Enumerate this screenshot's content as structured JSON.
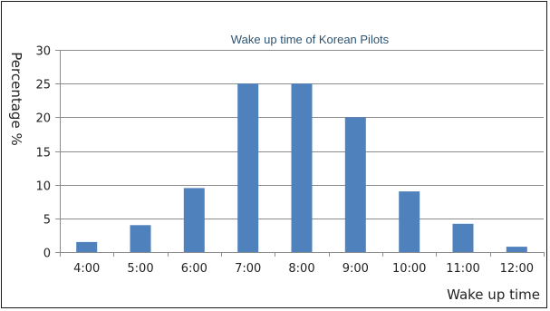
{
  "chart_data": {
    "type": "bar",
    "title": "Wake up time of Korean Pilots",
    "xlabel": "Wake up time",
    "ylabel": "Percentage %",
    "categories": [
      "4:00",
      "5:00",
      "6:00",
      "7:00",
      "8:00",
      "9:00",
      "10:00",
      "11:00",
      "12:00"
    ],
    "values": [
      1.5,
      4,
      9.5,
      25,
      25,
      20,
      9,
      4.2,
      0.8
    ],
    "yticks": [
      "0",
      "5",
      "10",
      "15",
      "20",
      "25",
      "30"
    ],
    "ylim": [
      0,
      30
    ],
    "grid": true,
    "legend": "none",
    "bar_color": "#4f81bd",
    "grid_color": "#8c8c8c",
    "axis_color": "#8c8c8c"
  }
}
